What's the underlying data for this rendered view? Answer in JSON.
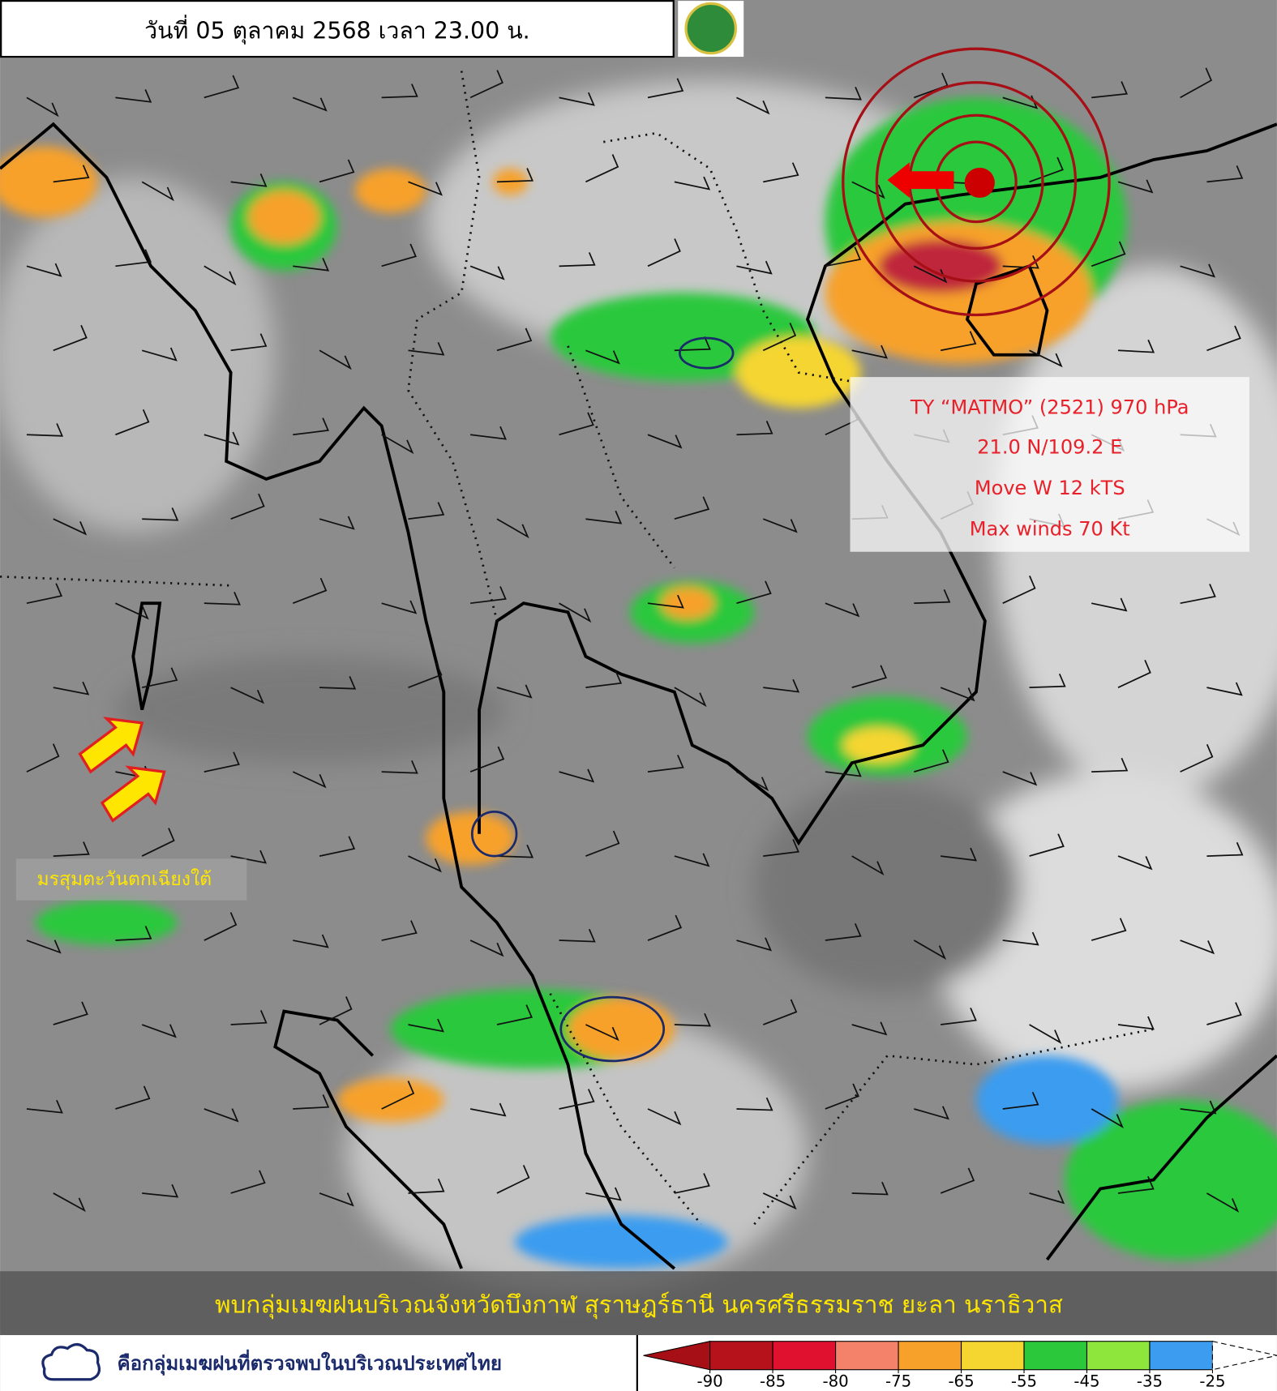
{
  "header": {
    "date": "วันที่ 05 ตุลาคม 2568 เวลา 23.00 น."
  },
  "storm": {
    "lines": [
      "TY “MATMO” (2521) 970 hPa",
      "21.0 N/109.2 E",
      "Move W 12 kTS",
      "Max winds 70 Kt"
    ]
  },
  "monsoon_label": "มรสุมตะวันตกเฉียงใต้",
  "banner": "พบกลุ่มเมฆฝนบริเวณจังหวัดบึงกาฬ สุราษฎร์ธานี นครศรีธรรมราช ยะลา นราธิวาส",
  "legend": {
    "text": "คือกลุ่มเมฆฝนที่ตรวจพบในบริเวณประเทศไทย"
  },
  "colorbar": {
    "ticks": [
      -90,
      -85,
      -80,
      -75,
      -65,
      -55,
      -45,
      -35,
      -25
    ],
    "colors": [
      "#a50f15",
      "#b5121b",
      "#e0102f",
      "#f4826a",
      "#f7a12a",
      "#f5d530",
      "#2cc83c",
      "#8ee63c",
      "#3b9cf0",
      "#ffffff"
    ]
  }
}
